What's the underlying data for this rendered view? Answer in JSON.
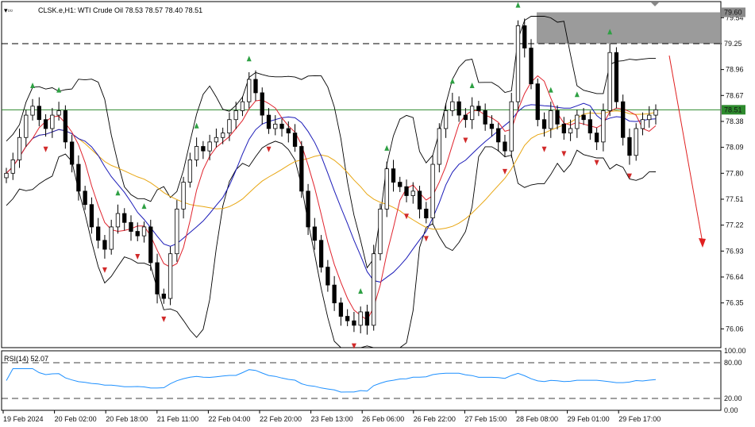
{
  "header": {
    "symbol_info": "CLSK.e,H1: WTI Crude Oil  78.53 78.57 78.40 78.51"
  },
  "rsi_panel": {
    "label": "RSI(14) 52.07",
    "scale_labels": [
      "100.00",
      "80.00",
      "20.00",
      "0.00"
    ]
  },
  "price_badges": {
    "top": "79.60",
    "middle": "79.25",
    "current": "78.51"
  },
  "colors": {
    "candle": "#000000",
    "bb": "#000000",
    "ma_fast": "#e0242e",
    "ma_mid": "#1b1bb8",
    "ma_slow": "#e8a612",
    "rsi": "#1e90ff",
    "arrow_up": "#2ea043",
    "arrow_down": "#d12a2a",
    "zone": "#8a8a8a",
    "hline": "#2d8a2d",
    "forecast_arrow": "#e02020"
  },
  "chart_data": {
    "type": "candlestick",
    "title": "",
    "y_ticks": [
      79.54,
      79.25,
      78.96,
      78.67,
      78.38,
      78.09,
      77.8,
      77.51,
      77.22,
      76.93,
      76.64,
      76.35,
      76.06
    ],
    "ylim": [
      75.85,
      79.72
    ],
    "x_labels": [
      "19 Feb 2024",
      "20 Feb 02:00",
      "20 Feb 18:00",
      "21 Feb 11:00",
      "22 Feb 04:00",
      "22 Feb 20:00",
      "23 Feb 13:00",
      "26 Feb 06:00",
      "26 Feb 22:00",
      "27 Feb 15:00",
      "28 Feb 08:00",
      "29 Feb 01:00",
      "29 Feb 17:00"
    ],
    "close_path": [
      77.8,
      77.95,
      78.2,
      78.45,
      78.55,
      78.4,
      78.3,
      78.45,
      78.5,
      78.15,
      77.9,
      77.6,
      77.45,
      77.2,
      77.05,
      76.95,
      77.2,
      77.35,
      77.25,
      77.15,
      77.1,
      77.2,
      76.8,
      76.45,
      76.4,
      76.9,
      77.4,
      77.7,
      77.95,
      78.1,
      78.05,
      78.15,
      78.2,
      78.25,
      78.4,
      78.5,
      78.6,
      78.85,
      78.7,
      78.45,
      78.3,
      78.35,
      78.3,
      78.25,
      78.1,
      77.6,
      77.2,
      77.05,
      76.75,
      76.55,
      76.35,
      76.2,
      76.15,
      76.1,
      76.25,
      76.1,
      76.9,
      77.4,
      77.85,
      77.7,
      77.65,
      77.55,
      77.6,
      77.4,
      77.3,
      77.9,
      78.3,
      78.5,
      78.6,
      78.45,
      78.4,
      78.55,
      78.5,
      78.35,
      78.3,
      78.15,
      78.05,
      78.6,
      79.45,
      79.2,
      78.8,
      78.4,
      78.3,
      78.5,
      78.35,
      78.25,
      78.3,
      78.45,
      78.4,
      78.25,
      78.15,
      78.5,
      79.15,
      78.6,
      78.2,
      78.0,
      78.3,
      78.4,
      78.45,
      78.51
    ],
    "upper_resistance_zone": [
      79.25,
      79.6
    ],
    "horizontal_level": 78.51,
    "rsi": {
      "name": "RSI(14)",
      "value": 52.07,
      "levels": [
        80,
        20
      ],
      "ylim": [
        0,
        100
      ]
    },
    "forecast": "down"
  }
}
